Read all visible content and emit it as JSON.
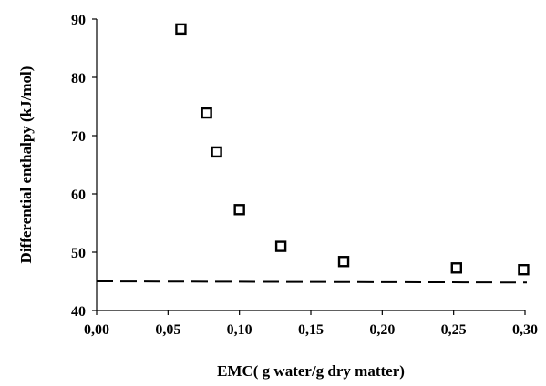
{
  "chart_data": {
    "type": "scatter",
    "title": "",
    "xlabel": "EMC( g water/g dry matter)",
    "ylabel": "Differential enthalpy (kJ/mol)",
    "xlim": [
      0.0,
      0.3
    ],
    "ylim": [
      40,
      90
    ],
    "x_ticks": [
      "0,00",
      "0,05",
      "0,10",
      "0,15",
      "0,20",
      "0,25",
      "0,30"
    ],
    "y_ticks": [
      "40",
      "50",
      "60",
      "70",
      "80",
      "90"
    ],
    "grid": false,
    "legend": "none",
    "series": [
      {
        "marker": "open-square",
        "x": [
          0.059,
          0.077,
          0.084,
          0.1,
          0.129,
          0.173,
          0.252,
          0.299
        ],
        "y": [
          88.3,
          73.9,
          67.2,
          57.3,
          51.0,
          48.4,
          47.3,
          47.0
        ]
      }
    ],
    "reference_line": {
      "style": "dashed",
      "y_start": 45.0,
      "y_end": 44.8
    },
    "colors": {
      "marker_stroke": "#000000",
      "line": "#000000",
      "axis": "#000000"
    }
  }
}
